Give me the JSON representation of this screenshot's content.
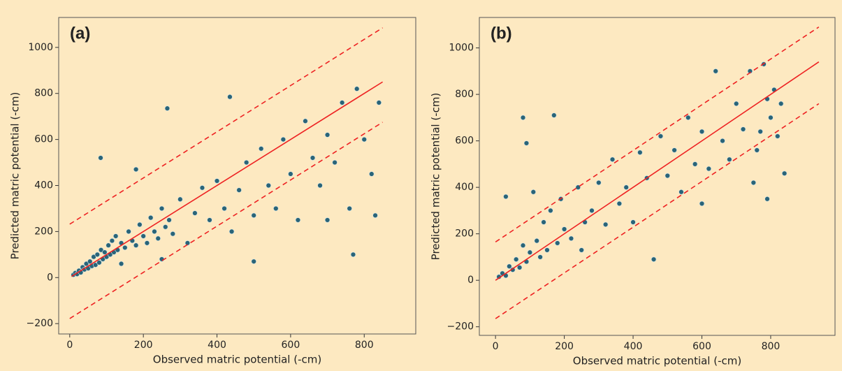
{
  "chart_data": [
    {
      "type": "scatter",
      "annotation": "(a)",
      "x_label": "Observed matric potential (-cm)",
      "y_label": "Predicted matric potential (-cm)",
      "xlim": [
        -30,
        940
      ],
      "ylim": [
        -245,
        1130
      ],
      "xticks": [
        0,
        200,
        400,
        600,
        800
      ],
      "yticks": [
        {
          "value": -200,
          "label": "−200"
        },
        0,
        200,
        400,
        600,
        800,
        1000
      ],
      "point_color": "#2a6478",
      "lines": [
        {
          "x": [
            5,
            850
          ],
          "y": [
            5,
            850
          ],
          "color": "#ee2222",
          "dashed": false
        },
        {
          "x": [
            0,
            850
          ],
          "y": [
            232,
            1085
          ],
          "color": "#ee2222",
          "dashed": true
        },
        {
          "x": [
            0,
            850
          ],
          "y": [
            -178,
            675
          ],
          "color": "#ee2222",
          "dashed": true
        }
      ],
      "x": [
        10,
        15,
        20,
        25,
        30,
        35,
        40,
        45,
        50,
        55,
        60,
        65,
        70,
        75,
        80,
        85,
        90,
        95,
        100,
        105,
        110,
        115,
        120,
        125,
        130,
        140,
        150,
        160,
        170,
        180,
        190,
        200,
        210,
        220,
        230,
        240,
        250,
        260,
        270,
        280,
        300,
        320,
        340,
        360,
        380,
        400,
        420,
        440,
        460,
        480,
        500,
        520,
        540,
        560,
        580,
        600,
        620,
        640,
        660,
        680,
        700,
        720,
        740,
        760,
        780,
        800,
        820,
        840,
        84,
        265,
        435,
        770,
        830,
        180,
        140,
        250,
        500,
        700
      ],
      "y": [
        12,
        20,
        15,
        30,
        22,
        45,
        35,
        60,
        40,
        70,
        50,
        90,
        55,
        100,
        65,
        120,
        80,
        110,
        90,
        140,
        100,
        160,
        110,
        180,
        120,
        150,
        130,
        200,
        160,
        140,
        230,
        180,
        150,
        260,
        200,
        170,
        300,
        220,
        250,
        190,
        340,
        150,
        280,
        390,
        250,
        420,
        300,
        200,
        380,
        500,
        270,
        560,
        400,
        300,
        600,
        450,
        250,
        680,
        520,
        400,
        620,
        500,
        760,
        300,
        820,
        600,
        450,
        760,
        520,
        735,
        785,
        100,
        270,
        470,
        60,
        80,
        70,
        250
      ]
    },
    {
      "type": "scatter",
      "annotation": "(b)",
      "x_label": "Observed matric potential (-cm)",
      "y_label": "Predicted matric potential (-cm)",
      "xlim": [
        -47,
        987
      ],
      "ylim": [
        -237,
        1131
      ],
      "xticks": [
        0,
        200,
        400,
        600,
        800
      ],
      "yticks": [
        {
          "value": -200,
          "label": "−200"
        },
        0,
        200,
        400,
        600,
        800,
        1000
      ],
      "point_color": "#2a6478",
      "lines": [
        {
          "x": [
            0,
            940
          ],
          "y": [
            0,
            940
          ],
          "color": "#ee2222",
          "dashed": false
        },
        {
          "x": [
            0,
            940
          ],
          "y": [
            165,
            1090
          ],
          "color": "#ee2222",
          "dashed": true
        },
        {
          "x": [
            0,
            940
          ],
          "y": [
            -165,
            760
          ],
          "color": "#ee2222",
          "dashed": true
        }
      ],
      "x": [
        10,
        20,
        30,
        40,
        50,
        60,
        70,
        80,
        90,
        100,
        110,
        120,
        130,
        140,
        150,
        160,
        170,
        180,
        190,
        200,
        220,
        240,
        260,
        280,
        300,
        320,
        340,
        360,
        380,
        400,
        420,
        440,
        460,
        480,
        500,
        520,
        540,
        560,
        580,
        600,
        620,
        640,
        660,
        680,
        700,
        720,
        740,
        760,
        780,
        790,
        800,
        810,
        820,
        830,
        840,
        750,
        790,
        30,
        80,
        90,
        770,
        250,
        600
      ],
      "y": [
        15,
        30,
        20,
        60,
        45,
        90,
        55,
        150,
        80,
        120,
        380,
        170,
        100,
        250,
        130,
        300,
        710,
        160,
        350,
        220,
        180,
        400,
        250,
        300,
        420,
        240,
        520,
        330,
        400,
        250,
        550,
        440,
        90,
        620,
        450,
        560,
        380,
        700,
        500,
        640,
        480,
        900,
        600,
        520,
        760,
        650,
        900,
        560,
        930,
        780,
        700,
        820,
        620,
        760,
        460,
        420,
        350,
        360,
        700,
        590,
        640,
        130,
        330
      ]
    }
  ]
}
